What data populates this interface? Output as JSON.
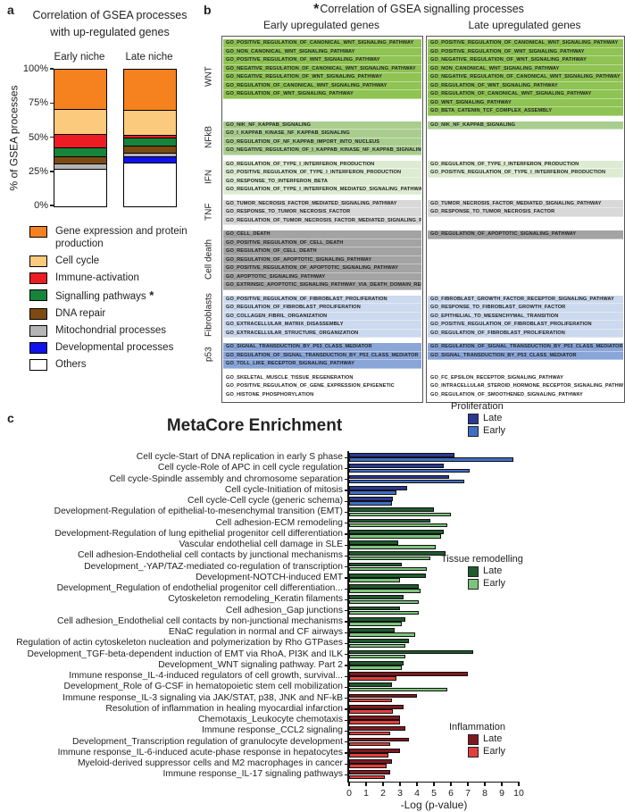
{
  "chart_data": [
    {
      "id": "panel_a",
      "panel_label": "a",
      "type": "bar",
      "stacked": true,
      "title": "Correlation of GSEA processes with up-regulated genes",
      "title_line1": "Correlation of GSEA processes",
      "title_line2": "with up-regulated genes",
      "ylabel": "% of GSEA processes",
      "ylim": [
        0,
        100
      ],
      "yticks": [
        {
          "label": "0%",
          "value": 0
        },
        {
          "label": "25%",
          "value": 25
        },
        {
          "label": "50%",
          "value": 50
        },
        {
          "label": "75%",
          "value": 75
        },
        {
          "label": "100%",
          "value": 100
        }
      ],
      "categories": [
        "Early niche",
        "Late niche"
      ],
      "series": [
        {
          "name": "Others",
          "color": "#ffffff",
          "values": [
            28,
            33
          ]
        },
        {
          "name": "Developmental processes",
          "color": "#1012ee",
          "values": [
            0,
            4
          ]
        },
        {
          "name": "Mitochondrial processes",
          "color": "#b5b5b5",
          "values": [
            3,
            2
          ]
        },
        {
          "name": "DNA repair",
          "color": "#7c4a12",
          "values": [
            5,
            5
          ]
        },
        {
          "name": "Signalling pathways",
          "color": "#17843c",
          "values": [
            6,
            5
          ],
          "star": " *"
        },
        {
          "name": "Immune-activation",
          "color": "#ed1c24",
          "values": [
            10,
            2
          ]
        },
        {
          "name": "Cell cycle",
          "color": "#fbca7d",
          "values": [
            18,
            18
          ]
        },
        {
          "name": "Gene expression and protein production",
          "color": "#f5821f",
          "values": [
            30,
            31
          ]
        }
      ]
    },
    {
      "id": "panel_b",
      "panel_label": "b",
      "type": "table",
      "title_star": "*",
      "title": "Correlation of GSEA signalling processes",
      "col_early": "Early upregulated genes",
      "col_late": "Late upregulated genes",
      "sections": [
        {
          "name": "WNT",
          "color": "#8fc353",
          "early": [
            "GO_POSITIVE_REGULATION_OF_CANONICAL_WNT_SIGNALING_PATHWAY",
            "GO_NON_CANONICAL_WNT_SIGNALING_PATHWAY",
            "GO_POSITIVE_REGULATION_OF_WNT_SIGNALING_PATHWAY",
            "GO_NEGATIVE_REGULATION_OF_CANONICAL_WNT_SIGNALING_PATHWAY",
            "GO_NEGATIVE_REGULATION_OF_WNT_SIGNALING_PATHWAY",
            "GO_REGULATION_OF_CANONICAL_WNT_SIGNALING_PATHWAY",
            "GO_REGULATION_OF_WNT_SIGNALING_PATHWAY"
          ],
          "late": [
            "GO_POSITIVE_REGULATION_OF_CANONICAL_WNT_SIGNALING_PATHWAY",
            "GO_POSITIVE_REGULATION_OF_WNT_SIGNALING_PATHWAY",
            "GO_NEGATIVE_REGULATION_OF_WNT_SIGNALING_PATHWAY",
            "GO_NON_CANONICAL_WNT_SIGNALING_PATHWAY",
            "GO_NEGATIVE_REGULATION_OF_CANONICAL_WNT_SIGNALING_PATHWAY",
            "GO_REGULATION_OF_WNT_SIGNALING_PATHWAY",
            "GO_REGULATION_OF_CANONICAL_WNT_SIGNALING_PATHWAY",
            "GO_WNT_SIGNALING_PATHWAY",
            "GO_BETA_CATENIN_TCF_COMPLEX_ASSEMBLY"
          ]
        },
        {
          "name": "NFkB",
          "color": "#a9cd8e",
          "early": [
            "GO_NIK_NF_KAPPAB_SIGNALING",
            "GO_I_KAPPAB_KINASE_NF_KAPPAB_SIGNALING",
            "GO_REGULATION_OF_NF_KAPPAB_IMPORT_INTO_NUCLEUS",
            "GO_NEGATIVE_REGULATION_OF_I_KAPPAB_KINASE_NF_KAPPAB_SIGNALING"
          ],
          "late": [
            "GO_NIK_NF_KAPPAB_SIGNALING"
          ]
        },
        {
          "name": "IFN",
          "color": "#ddebd2",
          "early": [
            "GO_REGULATION_OF_TYPE_I_INTERFERON_PRODUCTION",
            "GO_POSITIVE_REGULATION_OF_TYPE_I_INTERFERON_PRODUCTION",
            "GO_RESPONSE_TO_INTERFERON_BETA",
            "GO_REGULATION_OF_TYPE_I_INTERFERON_MEDIATED_SIGNALING_PATHWAY"
          ],
          "late": [
            "GO_REGULATION_OF_TYPE_I_INTERFERON_PRODUCTION",
            "GO_POSITIVE_REGULATION_OF_TYPE_I_INTERFERON_PRODUCTION"
          ]
        },
        {
          "name": "TNF",
          "color": "#d8d8d8",
          "early": [
            "GO_TUMOR_NECROSIS_FACTOR_MEDIATED_SIGNALING_PATHWAY",
            "GO_RESPONSE_TO_TUMOR_NECROSIS_FACTOR",
            "GO_REGULATION_OF_TUMOR_NECROSIS_FACTOR_MEDIATED_SIGNALING_PATHWAY"
          ],
          "late": [
            "GO_TUMOR_NECROSIS_FACTOR_MEDIATED_SIGNALING_PATHWAY",
            "GO_RESPONSE_TO_TUMOR_NECROSIS_FACTOR"
          ]
        },
        {
          "name": "Cell death",
          "color": "#a3a3a3",
          "early": [
            "GO_CELL_DEATH",
            "GO_POSITIVE_REGULATION_OF_CELL_DEATH",
            "GO_REGULATION_OF_CELL_DEATH",
            "GO_REGULATION_OF_APOPTOTIC_SIGNALING_PATHWAY",
            "GO_POSITIVE_REGULATION_OF_APOPTOTIC_SIGNALING_PATHWAY",
            "GO_APOPTOTIC_SIGNALING_PATHWAY",
            "GO_EXTRINSIC_APOPTOTIC_SIGNALING_PATHWAY_VIA_DEATH_DOMAIN_RECEPTORS"
          ],
          "late": [
            "GO_REGULATION_OF_APOPTOTIC_SIGNALING_PATHWAY"
          ]
        },
        {
          "name": "Fibroblasts",
          "color": "#ccd9ee",
          "early": [
            "GO_POSITIVE_REGULATION_OF_FIBROBLAST_PROLIFERATION",
            "GO_REGULATION_OF_FIBROBLAST_PROLIFERATION",
            "GO_COLLAGEN_FIBRIL_ORGANIZATION",
            "GO_EXTRACELLULAR_MATRIX_DISASSEMBLY",
            "GO_EXTRACELLULAR_STRUCTURE_ORGANIZATION"
          ],
          "late": [
            "GO_FIBROBLAST_GROWTH_FACTOR_RECEPTOR_SIGNALING_PATHWAY",
            "GO_RESPONSE_TO_FIBROBLAST_GROWTH_FACTOR",
            "GO_EPITHELIAL_TO_MESENCHYMAL_TRANSITION",
            "GO_POSITIVE_REGULATION_OF_FIBROBLAST_PROLIFERATION",
            "GO_REGULATION_OF_FIBROBLAST_PROLIFERATION"
          ]
        },
        {
          "name": "p53",
          "color": "#8aa5d8",
          "early": [
            "GO_SIGNAL_TRANSDUCTION_BY_P53_CLASS_MEDIATOR",
            "GO_REGULATION_OF_SIGNAL_TRANSDUCTION_BY_P53_CLASS_MEDIATOR",
            "GO_TOLL_LIKE_RECEPTOR_SIGNALING_PATHWAY"
          ],
          "late": [
            "GO_REGULATION_OF_SIGNAL_TRANSDUCTION_BY_P53_CLASS_MEDIATOR",
            "GO_SIGNAL_TRANSDUCTION_BY_P53_CLASS_MEDIATOR"
          ]
        },
        {
          "name": "",
          "color": "#ffffff",
          "early": [
            "GO_SKELETAL_MUSCLE_TISSUE_REGENERATION",
            "GO_POSITIVE_REGULATION_OF_GENE_EXPRESSION_EPIGENETIC",
            "GO_HISTONE_PHOSPHORYLATION"
          ],
          "late": [
            "GO_FC_EPSILON_RECEPTOR_SIGNALING_PATHWAY",
            "GO_INTRACELLULAR_STEROID_HORMONE_RECEPTOR_SIGNALING_PATHWAY",
            "GO_REGULATION_OF_SMOOTHENED_SIGNALING_PATHWAY"
          ]
        }
      ]
    },
    {
      "id": "panel_c",
      "panel_label": "c",
      "type": "bar",
      "orientation": "horizontal",
      "title": "MetaCore Enrichment",
      "xlabel": "-Log (p-value)",
      "xlim": [
        0,
        10
      ],
      "xticks": [
        0,
        1,
        2,
        3,
        4,
        5,
        6,
        7,
        8,
        9,
        10
      ],
      "legend_late": "Late",
      "legend_early": "Early",
      "groups": {
        "proliferation": {
          "title": "Proliferation",
          "late_color": "#2b3990",
          "early_color": "#3f6fc5"
        },
        "remodelling": {
          "title": "Tissue remodelling",
          "late_color": "#1e5b2d",
          "early_color": "#7cc47b"
        },
        "inflammation": {
          "title": "Inflammation",
          "late_color": "#7e1a1f",
          "early_color": "#e2403c"
        }
      },
      "rows": [
        {
          "label": "Cell cycle-Start of DNA replication in early S phase",
          "group": "proliferation",
          "late": 6.2,
          "early": 9.7
        },
        {
          "label": "Cell cycle-Role of APC in cell cycle regulation",
          "group": "proliferation",
          "late": 5.6,
          "early": 7.1
        },
        {
          "label": "Cell cycle-Spindle assembly and chromosome separation",
          "group": "proliferation",
          "late": 5.9,
          "early": 6.8
        },
        {
          "label": "Cell cycle-Initiation of mitosis",
          "group": "proliferation",
          "late": 3.4,
          "early": 2.8
        },
        {
          "label": "Cell cycle-Cell cycle (generic schema)",
          "group": "proliferation",
          "late": 2.6,
          "early": 2.5
        },
        {
          "label": "Development-Regulation of epithelial-to-mesenchymal transition (EMT)",
          "group": "remodelling",
          "late": 5.0,
          "early": 6.0
        },
        {
          "label": "Cell adhesion-ECM remodeling",
          "group": "remodelling",
          "late": 4.8,
          "early": 5.8
        },
        {
          "label": "Development-Regulation of lung epithelial progenitor cell differentiation",
          "group": "remodelling",
          "late": 5.6,
          "early": 5.4
        },
        {
          "label": "Vascular endothelial cell damage in SLE",
          "group": "remodelling",
          "late": 2.9,
          "early": 5.1
        },
        {
          "label": "Cell adhesion-Endothelial cell contacts by junctional mechanisms",
          "group": "remodelling",
          "late": 5.7,
          "early": 4.8
        },
        {
          "label": "Development_-YAP/TAZ-mediated co-regulation of transcription",
          "group": "remodelling",
          "late": 3.1,
          "early": 4.6
        },
        {
          "label": "Development-NOTCH-induced EMT",
          "group": "remodelling",
          "late": 4.5,
          "early": 3.0
        },
        {
          "label": "Development_Regulation of endothelial progenitor cell differentiation...",
          "group": "remodelling",
          "late": 4.1,
          "early": 4.2
        },
        {
          "label": "Cytoskeleton remodeling_Keratin filaments",
          "group": "remodelling",
          "late": 3.2,
          "early": 4.1
        },
        {
          "label": "Cell adhesion_Gap junctions",
          "group": "remodelling",
          "late": 3.0,
          "early": 4.1
        },
        {
          "label": "Cell adhesion_Endothelial cell contacts by non-junctional mechanisms",
          "group": "remodelling",
          "late": 3.3,
          "early": 3.1
        },
        {
          "label": "ENaC regulation in normal and CF airways",
          "group": "remodelling",
          "late": 2.7,
          "early": 3.9
        },
        {
          "label": "Regulation of actin cytoskeleton nucleation and polymerization by Rho GTPases",
          "group": "remodelling",
          "late": 3.5,
          "early": 3.3
        },
        {
          "label": "Development_TGF-beta-dependent induction of EMT via RhoA, PI3K and ILK",
          "group": "remodelling",
          "late": 7.3,
          "early": 3.3
        },
        {
          "label": "Development_WNT signaling pathway. Part 2",
          "group": "remodelling",
          "late": 3.2,
          "early": 3.1
        },
        {
          "label": "Immune response_IL-4-induced regulators of cell growth, survival...",
          "group": "inflammation",
          "late": 7.0,
          "early": 2.8
        },
        {
          "label": "Development_Role of G-CSF in hematopoietic stem cell mobilization",
          "group": "remodelling",
          "late": 2.5,
          "early": 5.8
        },
        {
          "label": "Immune response_IL-3 signaling via JAK/STAT, p38, JNK and NF-kB",
          "group": "inflammation",
          "late": 4.0,
          "early": 2.5
        },
        {
          "label": "Resolution of inflammation in healing myocardial infarction",
          "group": "inflammation",
          "late": 3.2,
          "early": 2.6
        },
        {
          "label": "Chemotaxis_Leukocyte chemotaxis",
          "group": "inflammation",
          "late": 3.0,
          "early": 3.0
        },
        {
          "label": "Immune response_CCL2 signaling",
          "group": "inflammation",
          "late": 3.3,
          "early": 2.4
        },
        {
          "label": "Development_Transcription regulation of granulocyte development",
          "group": "inflammation",
          "late": 3.5,
          "early": 2.4
        },
        {
          "label": "Immune response_IL-6-induced acute-phase response in hepatocytes",
          "group": "inflammation",
          "late": 3.0,
          "early": 2.3
        },
        {
          "label": "Myeloid-derived suppressor cells and M2 macrophages in cancer",
          "group": "inflammation",
          "late": 2.5,
          "early": 2.2
        },
        {
          "label": "Immune response_IL-17 signaling pathways",
          "group": "inflammation",
          "late": 2.4,
          "early": 2.1
        }
      ]
    }
  ]
}
